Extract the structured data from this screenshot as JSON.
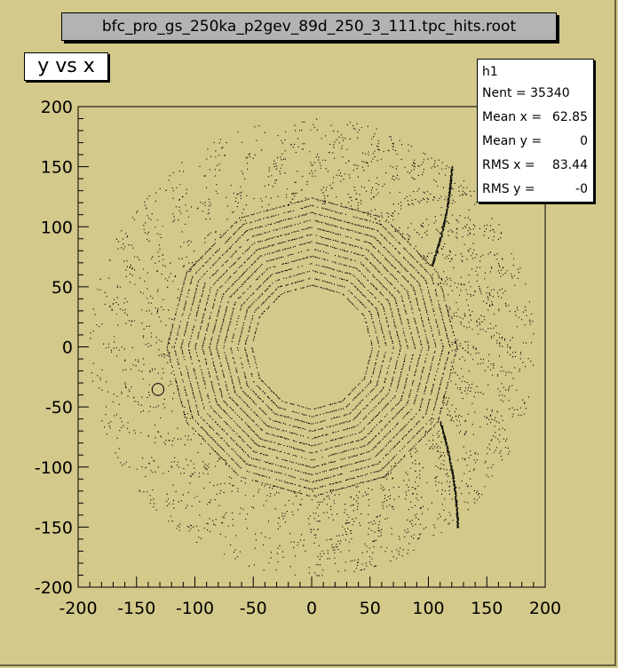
{
  "file_title": "bfc_pro_gs_250ka_p2gev_89d_250_3_111.tpc_hits.root",
  "plot_title": "y vs x",
  "stats": {
    "name": "h1",
    "rows": [
      {
        "label": "Nent = 35340",
        "value": ""
      },
      {
        "label": "Mean x =",
        "value": "62.85"
      },
      {
        "label": "Mean y =",
        "value": "0"
      },
      {
        "label": "RMS x =",
        "value": "83.44"
      },
      {
        "label": "RMS y =",
        "value": "-0"
      }
    ]
  },
  "colors": {
    "background": "#d3c98a",
    "points": "#000000"
  },
  "chart_data": {
    "type": "scatter",
    "title": "y vs x",
    "xlim": [
      -200,
      200
    ],
    "ylim": [
      -200,
      200
    ],
    "xticks": [
      -200,
      -150,
      -100,
      -50,
      0,
      50,
      100,
      150,
      200
    ],
    "yticks": [
      -200,
      -150,
      -100,
      -50,
      0,
      50,
      100,
      150,
      200
    ],
    "grid": false,
    "entries": 35340,
    "inner_radius_min": 50,
    "inner_radius_max": 120,
    "outer_radius_min": 120,
    "outer_radius_max": 190,
    "inner_sectors": 12,
    "inner_rows": 13,
    "outer_rows": 32,
    "track_arcs": [
      {
        "x_start": 103,
        "y_start": 68,
        "x_end": 120,
        "y_end": 150
      },
      {
        "x_start": 110,
        "y_start": -62,
        "x_end": 125,
        "y_end": -150
      }
    ],
    "ring_marker": {
      "x": -132,
      "y": -35
    }
  }
}
